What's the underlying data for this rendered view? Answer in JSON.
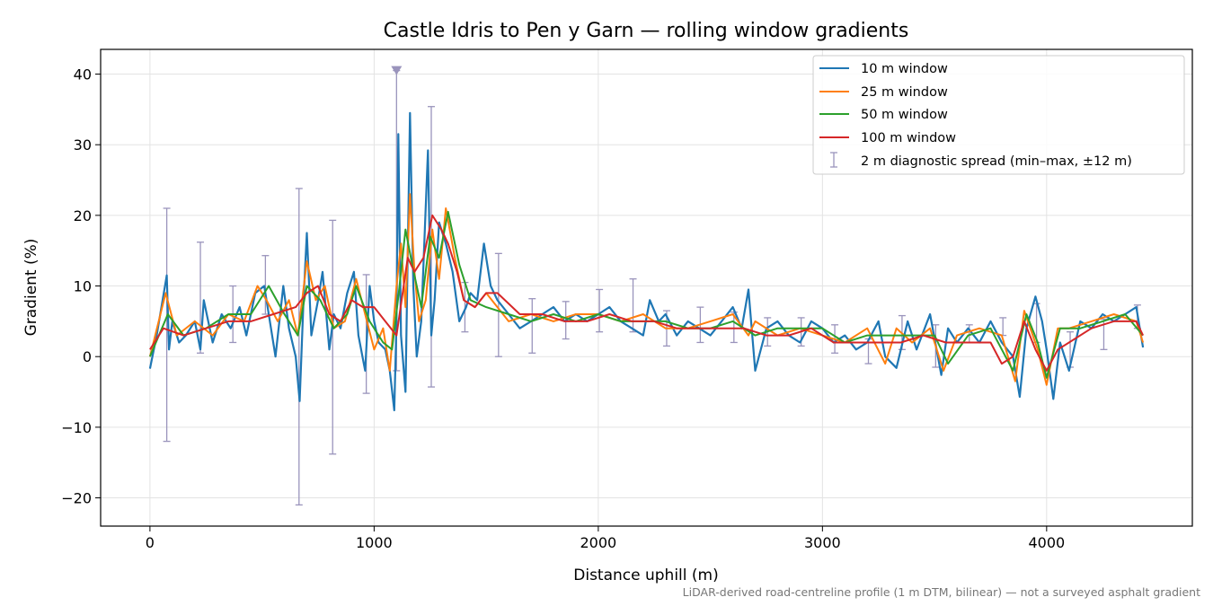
{
  "chart_data": {
    "type": "line",
    "title": "Castle Idris to Pen y Garn — rolling window gradients",
    "xlabel": "Distance uphill (m)",
    "ylabel": "Gradient (%)",
    "xlim": [
      -220,
      4650
    ],
    "ylim": [
      -24,
      43.5
    ],
    "xticks": [
      0,
      1000,
      2000,
      3000,
      4000
    ],
    "xtick_labels": [
      "0",
      "1000",
      "2000",
      "3000",
      "4000"
    ],
    "yticks": [
      -20,
      -10,
      0,
      10,
      20,
      30,
      40
    ],
    "ytick_labels": [
      "−20",
      "−10",
      "0",
      "10",
      "20",
      "30",
      "40"
    ],
    "grid": true,
    "legend_position": "top-right",
    "caption": "LiDAR-derived road-centreline profile (1 m DTM, bilinear) — not a surveyed asphalt gradient",
    "series": [
      {
        "name": "10 m window",
        "color": "#1f77b4",
        "x": [
          0,
          30,
          75,
          85,
          100,
          130,
          160,
          200,
          225,
          240,
          280,
          320,
          360,
          400,
          430,
          470,
          510,
          530,
          560,
          595,
          620,
          650,
          668,
          685,
          700,
          720,
          750,
          770,
          800,
          820,
          850,
          880,
          910,
          930,
          960,
          980,
          1000,
          1020,
          1050,
          1070,
          1090,
          1100,
          1108,
          1120,
          1140,
          1160,
          1175,
          1190,
          1210,
          1240,
          1255,
          1270,
          1290,
          1320,
          1350,
          1380,
          1410,
          1430,
          1460,
          1490,
          1520,
          1550,
          1600,
          1650,
          1700,
          1750,
          1800,
          1850,
          1900,
          1950,
          2000,
          2050,
          2100,
          2150,
          2200,
          2230,
          2270,
          2300,
          2350,
          2400,
          2450,
          2500,
          2550,
          2600,
          2640,
          2670,
          2700,
          2750,
          2800,
          2850,
          2900,
          2950,
          3000,
          3050,
          3100,
          3150,
          3200,
          3250,
          3280,
          3330,
          3380,
          3420,
          3480,
          3530,
          3560,
          3600,
          3650,
          3700,
          3750,
          3800,
          3850,
          3880,
          3910,
          3950,
          3980,
          4000,
          4030,
          4060,
          4100,
          4150,
          4200,
          4250,
          4300,
          4350,
          4400,
          4430
        ],
        "y": [
          -1.7,
          3,
          11.5,
          1,
          5,
          2,
          3,
          5,
          1,
          8,
          2,
          6,
          4,
          7,
          3,
          9,
          10,
          6,
          0,
          10,
          4,
          0,
          -6.3,
          8,
          17.5,
          3,
          8,
          12,
          1,
          6,
          4,
          9,
          12,
          3,
          -2,
          10,
          5,
          2,
          1,
          -2,
          -7.6,
          5,
          31.5,
          3,
          -5,
          34.5,
          10,
          0,
          5,
          29.2,
          3,
          8,
          19,
          16,
          12,
          5,
          7,
          9,
          8,
          16,
          10,
          8,
          6,
          4,
          5,
          6,
          7,
          5,
          6,
          5,
          6,
          7,
          5,
          4,
          3,
          8,
          5,
          6,
          3,
          5,
          4,
          3,
          5,
          7,
          4,
          9.5,
          -2,
          4,
          5,
          3,
          2,
          5,
          4,
          2,
          3,
          1,
          2,
          5,
          0,
          -1.6,
          5,
          1,
          6,
          -2.6,
          4,
          2,
          4,
          2,
          5,
          2,
          0,
          -5.7,
          4,
          8.5,
          5,
          1,
          -6,
          2,
          -2,
          5,
          4,
          6,
          5,
          6,
          7,
          1.3
        ]
      },
      {
        "name": "25 m window",
        "color": "#ff7f0e",
        "x": [
          0,
          70,
          120,
          200,
          280,
          350,
          420,
          480,
          520,
          570,
          620,
          660,
          700,
          740,
          780,
          820,
          870,
          920,
          960,
          1000,
          1040,
          1070,
          1100,
          1120,
          1140,
          1160,
          1180,
          1200,
          1230,
          1260,
          1290,
          1320,
          1360,
          1400,
          1450,
          1500,
          1550,
          1600,
          1700,
          1800,
          1900,
          2000,
          2100,
          2200,
          2300,
          2400,
          2500,
          2600,
          2670,
          2700,
          2800,
          2900,
          3000,
          3100,
          3200,
          3280,
          3330,
          3400,
          3480,
          3540,
          3600,
          3700,
          3800,
          3860,
          3900,
          3960,
          4000,
          4050,
          4100,
          4200,
          4300,
          4400,
          4430
        ],
        "y": [
          0,
          9,
          3,
          5,
          3,
          6,
          5,
          10,
          8,
          5,
          8,
          3,
          13.5,
          8,
          10,
          4,
          5,
          11,
          6,
          1,
          4,
          -2,
          10,
          16,
          7,
          23,
          12,
          5,
          8,
          18,
          11,
          21,
          14,
          8,
          7,
          9,
          7,
          5,
          6,
          5,
          6,
          6,
          5,
          6,
          4,
          4,
          5,
          6,
          3,
          5,
          3,
          4,
          3,
          2,
          4,
          -1,
          4,
          2,
          4,
          -2,
          3,
          4,
          3,
          -3.5,
          6.5,
          1,
          -4,
          4,
          4,
          5,
          6,
          5,
          2
        ]
      },
      {
        "name": "50 m window",
        "color": "#2ca02c",
        "x": [
          0,
          80,
          150,
          250,
          350,
          450,
          530,
          600,
          660,
          700,
          760,
          820,
          880,
          920,
          980,
          1040,
          1080,
          1110,
          1140,
          1170,
          1210,
          1250,
          1290,
          1330,
          1380,
          1430,
          1500,
          1600,
          1700,
          1800,
          1900,
          2000,
          2100,
          2200,
          2300,
          2400,
          2500,
          2600,
          2700,
          2800,
          2900,
          3000,
          3100,
          3200,
          3300,
          3400,
          3500,
          3560,
          3650,
          3750,
          3850,
          3910,
          3960,
          4000,
          4060,
          4150,
          4250,
          4350,
          4430
        ],
        "y": [
          0,
          6,
          3,
          4,
          6,
          6,
          10,
          6,
          3,
          10,
          8,
          4,
          6,
          10,
          5,
          2,
          1,
          9,
          18,
          13,
          7,
          17,
          14,
          20.5,
          13,
          8,
          7,
          6,
          5,
          6,
          5,
          6,
          5,
          5,
          5,
          4,
          4,
          5,
          3,
          4,
          4,
          4,
          2,
          3,
          3,
          3,
          3,
          -1,
          3,
          4,
          -2,
          6,
          2,
          -3,
          4,
          4,
          5,
          6,
          3
        ]
      },
      {
        "name": "100 m window",
        "color": "#d62728",
        "x": [
          0,
          60,
          150,
          250,
          350,
          450,
          550,
          650,
          700,
          750,
          800,
          850,
          900,
          950,
          1000,
          1050,
          1100,
          1150,
          1180,
          1220,
          1260,
          1300,
          1330,
          1370,
          1400,
          1450,
          1500,
          1550,
          1650,
          1750,
          1850,
          1950,
          2050,
          2150,
          2250,
          2350,
          2450,
          2550,
          2650,
          2750,
          2850,
          2950,
          3050,
          3150,
          3250,
          3350,
          3450,
          3550,
          3650,
          3750,
          3800,
          3850,
          3900,
          3950,
          4000,
          4050,
          4100,
          4200,
          4300,
          4400,
          4430
        ],
        "y": [
          1,
          4,
          3,
          4,
          5,
          5,
          6,
          7,
          9,
          10,
          6,
          5,
          8,
          7,
          7,
          5,
          3,
          14,
          12,
          14,
          20,
          18,
          16,
          12,
          8,
          7,
          9,
          9,
          6,
          6,
          5,
          5,
          6,
          5,
          5,
          4,
          4,
          4,
          4,
          3,
          3,
          4,
          2,
          2,
          2,
          2,
          3,
          2,
          2,
          2,
          -1,
          0,
          5,
          1,
          -2,
          1,
          2,
          4,
          5,
          5,
          3
        ]
      }
    ],
    "error_bars": {
      "name": "2 m diagnostic spread (min–max, ±12 m)",
      "color": "#9a94bc",
      "x": [
        75,
        225,
        370,
        515,
        665,
        815,
        965,
        1100,
        1255,
        1405,
        1555,
        1705,
        1855,
        2005,
        2155,
        2305,
        2455,
        2605,
        2755,
        2905,
        3055,
        3205,
        3355,
        3505,
        3655,
        3805,
        3955,
        4105,
        4255,
        4405
      ],
      "low": [
        -12,
        0.5,
        2,
        6,
        -21,
        -13.8,
        -5.2,
        -2,
        -4.3,
        3.5,
        0,
        0.5,
        2.5,
        3.5,
        3.5,
        1.5,
        2,
        2,
        1.5,
        1.5,
        0.5,
        -1,
        1,
        -1.5,
        2,
        3,
        2,
        -1.5,
        1,
        4
      ],
      "high": [
        21,
        16.2,
        10,
        14.3,
        23.8,
        19.3,
        11.6,
        40.5,
        35.4,
        10.5,
        14.6,
        8.2,
        7.8,
        9.5,
        11,
        6.5,
        7,
        6.3,
        5.5,
        5.5,
        4.5,
        2.5,
        5.8,
        4.5,
        4.5,
        5.5,
        7.5,
        3.5,
        5.3,
        7.3
      ]
    },
    "clipped_marker": {
      "x": 1100,
      "y": 40.5
    }
  }
}
